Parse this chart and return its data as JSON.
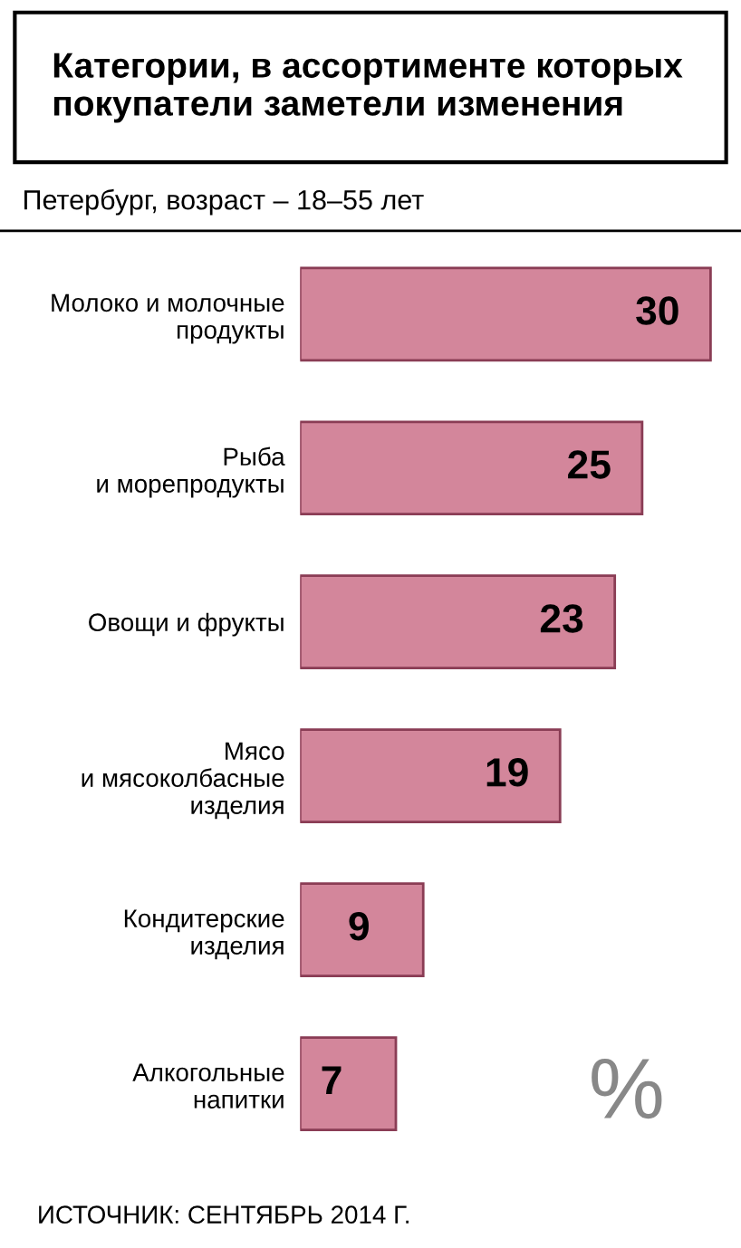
{
  "chart_data": {
    "type": "bar",
    "orientation": "horizontal",
    "title": "Категории, в ассортименте которых покупатели заметели изменения",
    "subtitle": "Петербург, возраст – 18–55 лет",
    "categories": [
      "Молоко и молочные\nпродукты",
      "Рыба\nи морепродукты",
      "Овощи и фрукты",
      "Мясо\nи мясоколбасные\nизделия",
      "Кондитерские\nизделия",
      "Алкогольные\nнапитки"
    ],
    "values": [
      30,
      25,
      23,
      19,
      9,
      7
    ],
    "color": "#d3869b",
    "data_labels": true,
    "annotations": [
      "%",
      "ИСТОЧНИК: СЕНТЯБРЬ 2014 Г."
    ]
  }
}
